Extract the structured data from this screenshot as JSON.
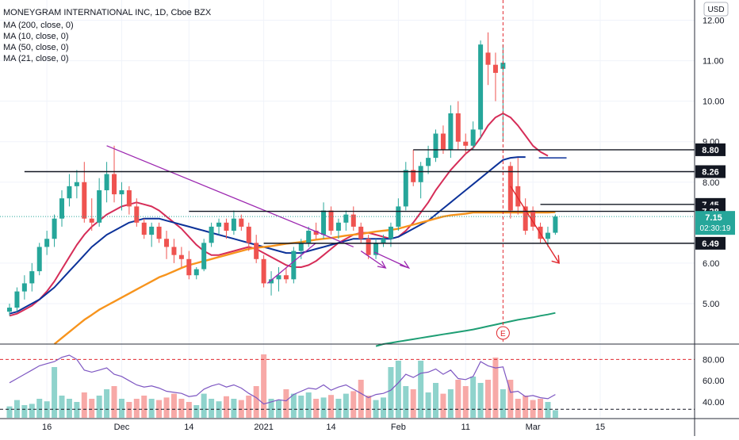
{
  "chart_data": {
    "type": "candlestick",
    "title": "MONEYGRAM INTERNATIONAL INC, 1D, Cboe BZX",
    "currency_badge": "USD",
    "indicators": [
      "MA (200, close, 0)",
      "MA (10, close, 0)",
      "MA (50, close, 0)",
      "MA (21, close, 0)"
    ],
    "price_axis": {
      "ticks": [
        12.0,
        11.0,
        10.0,
        9.0,
        8.0,
        6.0,
        5.0
      ],
      "tick_labels": [
        "12.00",
        "11.00",
        "10.00",
        "9.00",
        "8.00",
        "6.00",
        "5.00"
      ],
      "range": [
        4.0,
        12.5
      ]
    },
    "rsi_axis": {
      "ticks": [
        80,
        60,
        40
      ],
      "tick_labels": [
        "80.00",
        "60.00",
        "40.00"
      ],
      "range": [
        25,
        90
      ]
    },
    "x_ticks": [
      {
        "i": 5,
        "label": "16"
      },
      {
        "i": 15,
        "label": "Dec"
      },
      {
        "i": 24,
        "label": "14"
      },
      {
        "i": 34,
        "label": "2021"
      },
      {
        "i": 43,
        "label": "14"
      },
      {
        "i": 52,
        "label": "Feb"
      },
      {
        "i": 61,
        "label": "11"
      },
      {
        "i": 70,
        "label": "Mar"
      },
      {
        "i": 79,
        "label": "15"
      }
    ],
    "candles": [
      [
        4.8,
        5.0,
        4.7,
        4.9
      ],
      [
        4.9,
        5.4,
        4.8,
        5.3
      ],
      [
        5.3,
        5.7,
        5.1,
        5.5
      ],
      [
        5.5,
        6.0,
        5.3,
        5.8
      ],
      [
        5.8,
        6.5,
        5.7,
        6.4
      ],
      [
        6.4,
        6.8,
        6.2,
        6.6
      ],
      [
        6.6,
        7.2,
        6.4,
        7.1
      ],
      [
        7.1,
        7.8,
        6.9,
        7.6
      ],
      [
        7.6,
        8.2,
        7.4,
        7.9
      ],
      [
        7.9,
        8.3,
        7.6,
        8.0
      ],
      [
        8.0,
        8.5,
        7.0,
        7.1
      ],
      [
        7.1,
        7.6,
        6.8,
        7.0
      ],
      [
        7.0,
        8.1,
        6.9,
        7.8
      ],
      [
        7.8,
        8.5,
        7.5,
        8.2
      ],
      [
        8.2,
        8.9,
        7.5,
        7.7
      ],
      [
        7.7,
        8.0,
        7.3,
        7.8
      ],
      [
        7.8,
        7.9,
        7.2,
        7.4
      ],
      [
        7.4,
        7.6,
        6.9,
        7.0
      ],
      [
        7.0,
        7.1,
        6.6,
        6.7
      ],
      [
        6.7,
        7.0,
        6.4,
        6.9
      ],
      [
        6.9,
        7.0,
        6.5,
        6.6
      ],
      [
        6.6,
        6.8,
        6.1,
        6.4
      ],
      [
        6.4,
        6.6,
        6.0,
        6.2
      ],
      [
        6.2,
        6.4,
        5.9,
        6.1
      ],
      [
        6.1,
        6.3,
        5.6,
        5.7
      ],
      [
        5.7,
        5.9,
        5.6,
        5.85
      ],
      [
        5.85,
        6.6,
        5.8,
        6.5
      ],
      [
        6.5,
        7.0,
        6.4,
        6.9
      ],
      [
        6.9,
        7.1,
        6.7,
        7.0
      ],
      [
        7.0,
        7.1,
        6.6,
        6.8
      ],
      [
        6.8,
        7.3,
        6.7,
        7.1
      ],
      [
        7.1,
        7.2,
        6.8,
        6.9
      ],
      [
        6.9,
        7.0,
        6.3,
        6.5
      ],
      [
        6.5,
        6.7,
        6.0,
        6.1
      ],
      [
        6.1,
        6.2,
        5.4,
        5.5
      ],
      [
        5.5,
        5.8,
        5.2,
        5.6
      ],
      [
        5.6,
        5.9,
        5.3,
        5.7
      ],
      [
        5.7,
        5.9,
        5.5,
        5.6
      ],
      [
        5.6,
        6.4,
        5.5,
        6.3
      ],
      [
        6.3,
        6.6,
        6.1,
        6.5
      ],
      [
        6.5,
        6.9,
        6.4,
        6.8
      ],
      [
        6.8,
        7.0,
        6.6,
        6.7
      ],
      [
        6.7,
        7.5,
        6.6,
        7.3
      ],
      [
        7.3,
        7.4,
        6.7,
        6.8
      ],
      [
        6.8,
        7.1,
        6.6,
        7.0
      ],
      [
        7.0,
        7.3,
        6.8,
        7.2
      ],
      [
        7.2,
        7.4,
        6.8,
        6.9
      ],
      [
        6.9,
        7.0,
        6.5,
        6.6
      ],
      [
        6.6,
        6.7,
        6.1,
        6.2
      ],
      [
        6.2,
        6.6,
        6.1,
        6.5
      ],
      [
        6.5,
        6.7,
        6.4,
        6.6
      ],
      [
        6.6,
        7.0,
        6.4,
        6.9
      ],
      [
        6.9,
        7.6,
        6.8,
        7.4
      ],
      [
        7.4,
        8.5,
        7.3,
        8.3
      ],
      [
        8.3,
        8.8,
        7.9,
        8.0
      ],
      [
        8.0,
        8.5,
        7.6,
        8.4
      ],
      [
        8.4,
        8.9,
        8.2,
        8.6
      ],
      [
        8.6,
        9.3,
        8.5,
        9.2
      ],
      [
        9.2,
        9.4,
        8.7,
        8.8
      ],
      [
        8.8,
        9.9,
        8.6,
        9.7
      ],
      [
        9.7,
        10.0,
        8.8,
        9.0
      ],
      [
        9.0,
        9.2,
        8.7,
        8.9
      ],
      [
        8.9,
        9.5,
        8.8,
        9.3
      ],
      [
        9.3,
        11.5,
        9.1,
        11.4
      ],
      [
        11.2,
        11.7,
        10.4,
        10.9
      ],
      [
        10.9,
        11.2,
        10.0,
        10.7
      ],
      [
        10.8,
        11.4,
        9.0,
        10.95
      ],
      [
        8.4,
        8.5,
        7.1,
        7.3
      ],
      [
        7.9,
        8.6,
        7.2,
        7.4
      ],
      [
        7.4,
        7.6,
        6.7,
        6.8
      ],
      [
        7.3,
        7.4,
        6.8,
        6.9
      ],
      [
        6.9,
        7.0,
        6.5,
        6.6
      ],
      [
        6.6,
        6.9,
        6.4,
        6.75
      ],
      [
        6.75,
        7.2,
        6.7,
        7.15
      ]
    ],
    "moving_averages": [
      {
        "name": "MA (10, close, 0)",
        "color": "#d62d58",
        "start": 0,
        "values": [
          4.7,
          4.75,
          4.85,
          4.95,
          5.1,
          5.3,
          5.55,
          5.85,
          6.15,
          6.45,
          6.7,
          6.9,
          7.05,
          7.2,
          7.3,
          7.4,
          7.45,
          7.5,
          7.45,
          7.4,
          7.3,
          7.15,
          7.0,
          6.85,
          6.65,
          6.45,
          6.3,
          6.2,
          6.2,
          6.25,
          6.3,
          6.35,
          6.4,
          6.35,
          6.25,
          6.15,
          6.05,
          5.95,
          5.9,
          5.9,
          5.95,
          6.05,
          6.2,
          6.35,
          6.5,
          6.6,
          6.7,
          6.75,
          6.75,
          6.7,
          6.65,
          6.6,
          6.65,
          6.8,
          7.0,
          7.25,
          7.5,
          7.8,
          8.05,
          8.3,
          8.5,
          8.7,
          8.85,
          9.1,
          9.4,
          9.6,
          9.7,
          9.6,
          9.4,
          9.15,
          8.9,
          8.75,
          8.65
        ]
      },
      {
        "name": "MA (21, close, 0)",
        "color": "#0c3299",
        "start": 0,
        "values": [
          4.75,
          4.8,
          4.9,
          5.0,
          5.1,
          5.25,
          5.4,
          5.6,
          5.8,
          6.0,
          6.2,
          6.4,
          6.55,
          6.7,
          6.8,
          6.9,
          7.0,
          7.05,
          7.1,
          7.1,
          7.1,
          7.05,
          7.0,
          6.95,
          6.9,
          6.85,
          6.8,
          6.75,
          6.7,
          6.65,
          6.6,
          6.55,
          6.5,
          6.45,
          6.4,
          6.35,
          6.3,
          6.25,
          6.25,
          6.25,
          6.3,
          6.35,
          6.4,
          6.45,
          6.5,
          6.55,
          6.6,
          6.6,
          6.6,
          6.6,
          6.6,
          6.6,
          6.65,
          6.75,
          6.85,
          6.95,
          7.05,
          7.2,
          7.35,
          7.5,
          7.65,
          7.8,
          7.95,
          8.1,
          8.25,
          8.4,
          8.55,
          8.6,
          8.62,
          8.62
        ]
      },
      {
        "name": "MA (50, close, 0)",
        "color": "#f7941d",
        "start": 6,
        "values": [
          4.0,
          4.15,
          4.3,
          4.45,
          4.6,
          4.72,
          4.85,
          4.95,
          5.05,
          5.15,
          5.25,
          5.35,
          5.45,
          5.55,
          5.65,
          5.72,
          5.8,
          5.88,
          5.95,
          6.0,
          6.05,
          6.1,
          6.15,
          6.2,
          6.25,
          6.3,
          6.35,
          6.38,
          6.4,
          6.42,
          6.45,
          6.48,
          6.5,
          6.52,
          6.55,
          6.58,
          6.6,
          6.62,
          6.65,
          6.68,
          6.7,
          6.72,
          6.75,
          6.78,
          6.8,
          6.82,
          6.85,
          6.9,
          6.95,
          7.0,
          7.05,
          7.1,
          7.15,
          7.18,
          7.2,
          7.22,
          7.25,
          7.25,
          7.25,
          7.25,
          7.25,
          7.25,
          7.25,
          7.25,
          7.25,
          7.25,
          7.25,
          7.26
        ]
      },
      {
        "name": "MA (200, close, 0)",
        "color": "#1e9e74",
        "start": 49,
        "values": [
          3.95,
          4.0,
          4.03,
          4.06,
          4.09,
          4.12,
          4.15,
          4.18,
          4.21,
          4.24,
          4.27,
          4.3,
          4.33,
          4.36,
          4.4,
          4.44,
          4.48,
          4.52,
          4.56,
          4.6,
          4.63,
          4.66,
          4.7,
          4.73,
          4.77
        ]
      }
    ],
    "volume": [
      0.18,
      0.28,
      0.2,
      0.22,
      0.3,
      0.26,
      0.8,
      0.35,
      0.3,
      0.25,
      0.4,
      0.3,
      0.35,
      0.45,
      0.5,
      0.3,
      0.25,
      0.3,
      0.35,
      0.3,
      0.28,
      0.32,
      0.38,
      0.3,
      0.25,
      0.2,
      0.38,
      0.3,
      0.26,
      0.34,
      0.3,
      0.28,
      0.35,
      0.5,
      1.0,
      0.3,
      0.28,
      0.45,
      0.38,
      0.35,
      0.4,
      0.3,
      0.32,
      0.36,
      0.3,
      0.38,
      0.42,
      0.6,
      0.35,
      0.28,
      0.32,
      0.8,
      0.9,
      0.5,
      0.45,
      0.9,
      0.4,
      0.55,
      0.38,
      0.45,
      0.6,
      0.5,
      0.65,
      0.55,
      0.6,
      0.95,
      0.45,
      0.6,
      0.3,
      0.35,
      0.28,
      0.3,
      0.25,
      0.12
    ],
    "rsi": [
      58,
      62,
      66,
      70,
      74,
      76,
      78,
      82,
      84,
      80,
      70,
      68,
      70,
      72,
      66,
      64,
      60,
      56,
      54,
      55,
      53,
      50,
      49,
      48,
      45,
      46,
      52,
      55,
      57,
      54,
      56,
      53,
      48,
      44,
      38,
      40,
      42,
      41,
      47,
      50,
      53,
      52,
      56,
      51,
      54,
      56,
      52,
      48,
      44,
      47,
      48,
      51,
      58,
      66,
      63,
      67,
      68,
      71,
      66,
      70,
      62,
      61,
      64,
      78,
      74,
      72,
      73,
      49,
      50,
      45,
      46,
      44,
      43,
      47
    ],
    "price_lines": [
      {
        "value": 8.8,
        "label": "8.80"
      },
      {
        "value": 8.26,
        "label": "8.26"
      },
      {
        "value": 7.45,
        "label": "7.45"
      },
      {
        "value": 7.28,
        "label": "7.28"
      },
      {
        "value": 6.49,
        "label": "6.49"
      }
    ],
    "last_price": {
      "value": 7.15,
      "label": "7.15",
      "countdown": "02:30:19",
      "color": "#26a69a"
    },
    "event_marker": {
      "i": 66,
      "label": "E"
    }
  }
}
